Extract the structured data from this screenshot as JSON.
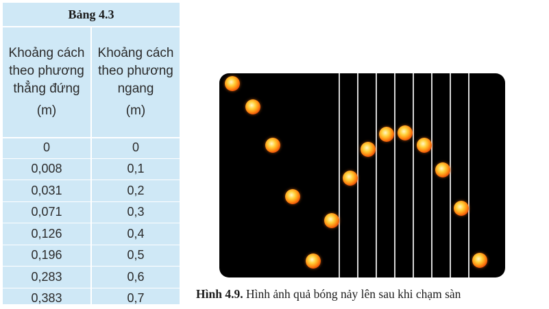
{
  "table": {
    "title": "Bảng 4.3",
    "columns": [
      {
        "label": "Khoảng cách theo phương thẳng đứng",
        "unit": "(m)"
      },
      {
        "label": "Khoảng cách theo phương ngang",
        "unit": "(m)"
      }
    ],
    "rows": [
      [
        "0",
        "0"
      ],
      [
        "0,008",
        "0,1"
      ],
      [
        "0,031",
        "0,2"
      ],
      [
        "0,071",
        "0,3"
      ],
      [
        "0,126",
        "0,4"
      ],
      [
        "0,196",
        "0,5"
      ],
      [
        "0,283",
        "0,6"
      ],
      [
        "0,383",
        "0,7"
      ]
    ]
  },
  "figure": {
    "caption_label": "Hình 4.9.",
    "caption_text": " Hình ảnh quả bóng nảy lên sau khi chạm sàn"
  }
}
